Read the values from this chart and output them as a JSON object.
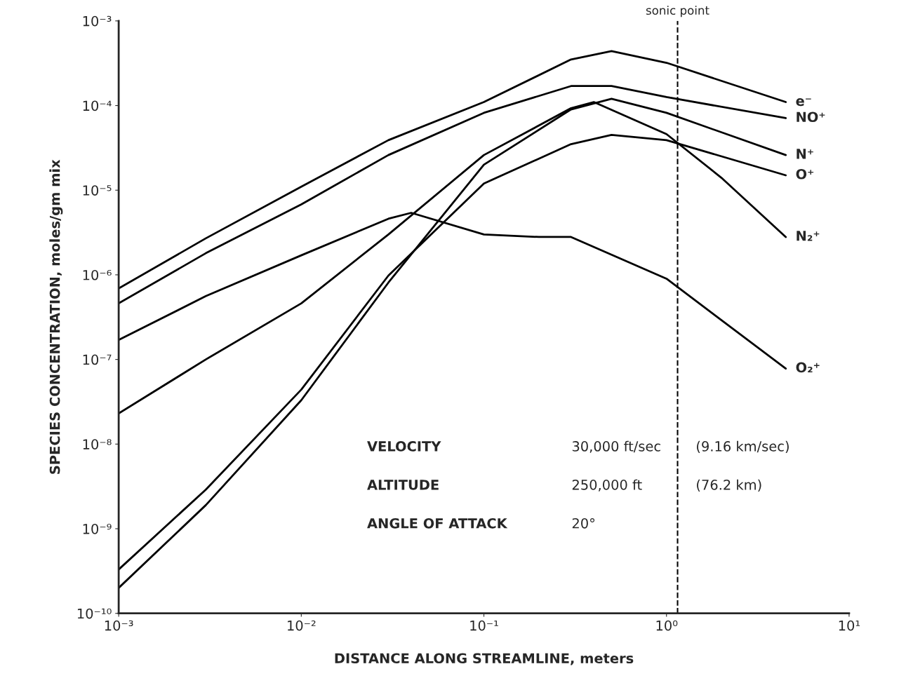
{
  "chart_data": {
    "type": "line",
    "xlabel": "DISTANCE ALONG STREAMLINE, meters",
    "ylabel": "SPECIES CONCENTRATION, moles/gm mix",
    "log": "xy",
    "xlim": [
      0.001,
      10
    ],
    "ylim": [
      1e-10,
      0.001
    ],
    "xticks": [
      {
        "value": 0.001,
        "label": "10⁻³"
      },
      {
        "value": 0.01,
        "label": "10⁻²"
      },
      {
        "value": 0.1,
        "label": "10⁻¹"
      },
      {
        "value": 1,
        "label": "10⁰"
      },
      {
        "value": 10,
        "label": "10¹"
      }
    ],
    "yticks": [
      {
        "value": 1e-10,
        "label": "10⁻¹⁰"
      },
      {
        "value": 1e-09,
        "label": "10⁻⁹"
      },
      {
        "value": 1e-08,
        "label": "10⁻⁸"
      },
      {
        "value": 1e-07,
        "label": "10⁻⁷"
      },
      {
        "value": 1e-06,
        "label": "10⁻⁶"
      },
      {
        "value": 1e-05,
        "label": "10⁻⁵"
      },
      {
        "value": 0.0001,
        "label": "10⁻⁴"
      },
      {
        "value": 0.001,
        "label": "10⁻³"
      }
    ],
    "grid": false,
    "legend": false,
    "marker": "none",
    "line_style": "solid",
    "series": [
      {
        "name": "e⁻",
        "color": "#000000",
        "x": [
          0.001,
          0.003,
          0.01,
          0.03,
          0.1,
          0.3,
          0.5,
          1,
          4.5
        ],
        "values": [
          6.9e-07,
          2.7e-06,
          1.1e-05,
          3.9e-05,
          0.00011,
          0.00035,
          0.00044,
          0.00032,
          0.00011
        ]
      },
      {
        "name": "NO⁺",
        "color": "#000000",
        "x": [
          0.001,
          0.003,
          0.01,
          0.03,
          0.1,
          0.3,
          0.5,
          1,
          4.5
        ],
        "values": [
          4.6e-07,
          1.8e-06,
          6.8e-06,
          2.6e-05,
          8.2e-05,
          0.00017,
          0.00017,
          0.000126,
          7.1e-05
        ]
      },
      {
        "name": "N⁺",
        "color": "#000000",
        "x": [
          0.001,
          0.003,
          0.01,
          0.03,
          0.1,
          0.3,
          0.5,
          1,
          4.5
        ],
        "values": [
          2e-10,
          1.9e-09,
          3.3e-08,
          8.1e-07,
          2e-05,
          9e-05,
          0.00012,
          8.2e-05,
          2.6e-05
        ]
      },
      {
        "name": "O⁺",
        "color": "#000000",
        "x": [
          0.001,
          0.003,
          0.01,
          0.03,
          0.1,
          0.3,
          0.5,
          1,
          4.5
        ],
        "values": [
          3.3e-10,
          2.9e-09,
          4.4e-08,
          9.8e-07,
          1.2e-05,
          3.5e-05,
          4.5e-05,
          3.9e-05,
          1.5e-05
        ]
      },
      {
        "name": "N₂⁺",
        "color": "#000000",
        "x": [
          0.001,
          0.003,
          0.01,
          0.03,
          0.1,
          0.3,
          0.4,
          1,
          2,
          4.5
        ],
        "values": [
          2.3e-08,
          1e-07,
          4.6e-07,
          3e-06,
          2.6e-05,
          9.3e-05,
          0.00011,
          4.6e-05,
          1.4e-05,
          2.8e-06
        ]
      },
      {
        "name": "O₂⁺",
        "color": "#000000",
        "x": [
          0.001,
          0.003,
          0.01,
          0.03,
          0.04,
          0.1,
          0.2,
          0.3,
          1,
          4.5
        ],
        "values": [
          1.7e-07,
          5.6e-07,
          1.7e-06,
          4.6e-06,
          5.4e-06,
          3e-06,
          2.8e-06,
          2.8e-06,
          9e-07,
          7.8e-08
        ]
      }
    ],
    "ref_lines": [
      {
        "axis": "x",
        "value": 1.15,
        "label": "sonic point",
        "line_style": "dashed",
        "color": "#000000"
      }
    ],
    "annotations": [
      "VELOCITY",
      "30,000 ft/sec",
      "(9.16 km/sec)",
      "ALTITUDE",
      "250,000 ft",
      "(76.2 km)",
      "ANGLE OF ATTACK",
      "20°"
    ]
  }
}
